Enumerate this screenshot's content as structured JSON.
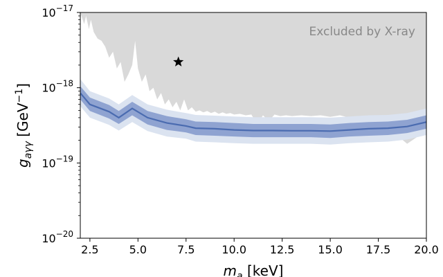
{
  "chart_data": {
    "type": "area",
    "title": "",
    "xlabel": "m_a [keV]",
    "ylabel": "g_aγγ [GeV⁻¹]",
    "xlim": [
      2.0,
      20.0
    ],
    "ylim": [
      1e-20,
      1e-17
    ],
    "xscale": "linear",
    "yscale": "log",
    "grid": false,
    "xticks": [
      {
        "value": 2.5,
        "label": "2.5"
      },
      {
        "value": 5.0,
        "label": "5.0"
      },
      {
        "value": 7.5,
        "label": "7.5"
      },
      {
        "value": 10.0,
        "label": "10.0"
      },
      {
        "value": 12.5,
        "label": "12.5"
      },
      {
        "value": 15.0,
        "label": "15.0"
      },
      {
        "value": 17.5,
        "label": "17.5"
      },
      {
        "value": 20.0,
        "label": "20.0"
      }
    ],
    "yticks": [
      {
        "value": 1e-20,
        "base": "10",
        "exp": "−20"
      },
      {
        "value": 1e-19,
        "base": "10",
        "exp": "−19"
      },
      {
        "value": 1e-18,
        "base": "10",
        "exp": "−18"
      },
      {
        "value": 1e-17,
        "base": "10",
        "exp": "−17"
      }
    ],
    "annotation": {
      "text": "Excluded by X-ray",
      "color": "#888888"
    },
    "colors": {
      "excluded": "#d9d9d9",
      "band_2sigma": "#dbe3f0",
      "band_1sigma": "#8fa3d1",
      "median": "#4a6bb0",
      "marker": "#000000"
    },
    "excluded_boundary": {
      "x": [
        2.0,
        2.2,
        2.3,
        2.45,
        2.55,
        2.7,
        2.9,
        3.1,
        3.3,
        3.5,
        3.7,
        3.9,
        4.1,
        4.3,
        4.5,
        4.7,
        4.85,
        5.0,
        5.2,
        5.4,
        5.6,
        5.8,
        6.0,
        6.2,
        6.4,
        6.6,
        6.8,
        7.0,
        7.2,
        7.4,
        7.6,
        7.8,
        8.0,
        8.2,
        8.4,
        8.6,
        8.8,
        9.0,
        9.2,
        9.4,
        9.6,
        9.8,
        10.0,
        10.3,
        10.6,
        10.9,
        11.2,
        11.5,
        11.8,
        12.1,
        12.4,
        12.7,
        13.0,
        13.5,
        14.0,
        14.5,
        15.0,
        15.5,
        16.0,
        16.5,
        17.0,
        17.5,
        18.0,
        18.5,
        19.0,
        19.5,
        20.0
      ],
      "y": [
        1e-17,
        7e-18,
        9e-18,
        6e-18,
        8e-18,
        5.5e-18,
        4.5e-18,
        4.2e-18,
        3.5e-18,
        2.5e-18,
        3e-18,
        1.8e-18,
        2.2e-18,
        1.2e-18,
        1.5e-18,
        2e-18,
        4.2e-18,
        1.8e-18,
        1.2e-18,
        1.5e-18,
        9e-19,
        1e-18,
        7e-19,
        8.5e-19,
        6e-19,
        7e-19,
        5.5e-19,
        6.5e-19,
        5e-19,
        7e-19,
        5e-19,
        5.5e-19,
        4.8e-19,
        5e-19,
        4.7e-19,
        4.9e-19,
        4.6e-19,
        4.8e-19,
        4.5e-19,
        4.7e-19,
        4.5e-19,
        4.6e-19,
        4.4e-19,
        4.5e-19,
        4.3e-19,
        4.4e-19,
        3.2e-19,
        4.3e-19,
        3.6e-19,
        4.4e-19,
        4.2e-19,
        4.3e-19,
        4.2e-19,
        4.3e-19,
        4.2e-19,
        4.3e-19,
        4.1e-19,
        4.3e-19,
        4e-19,
        4.2e-19,
        3.6e-19,
        3.2e-19,
        2.9e-19,
        2.3e-19,
        1.8e-19,
        2.2e-19,
        2.5e-19
      ]
    },
    "x": [
      2.0,
      2.5,
      3.5,
      4.0,
      4.7,
      5.5,
      6.5,
      7.5,
      8.0,
      9.0,
      10.0,
      11.0,
      12.0,
      13.0,
      14.0,
      15.0,
      16.0,
      17.0,
      18.0,
      19.0,
      20.0
    ],
    "series": [
      {
        "role": "median",
        "values": [
          8.5e-19,
          6e-19,
          4.8e-19,
          4e-19,
          5.3e-19,
          4e-19,
          3.4e-19,
          3.1e-19,
          2.9e-19,
          2.85e-19,
          2.75e-19,
          2.7e-19,
          2.7e-19,
          2.68e-19,
          2.68e-19,
          2.65e-19,
          2.75e-19,
          2.85e-19,
          2.9e-19,
          3.05e-19,
          3.5e-19
        ]
      },
      {
        "role": "1sigma_upper",
        "values": [
          1.05e-18,
          7.4e-19,
          5.9e-19,
          4.9e-19,
          6.5e-19,
          4.9e-19,
          4.2e-19,
          3.8e-19,
          3.55e-19,
          3.5e-19,
          3.4e-19,
          3.3e-19,
          3.3e-19,
          3.3e-19,
          3.3e-19,
          3.25e-19,
          3.4e-19,
          3.5e-19,
          3.55e-19,
          3.75e-19,
          4.3e-19
        ]
      },
      {
        "role": "1sigma_lower",
        "values": [
          7e-19,
          4.9e-19,
          3.9e-19,
          3.3e-19,
          4.3e-19,
          3.25e-19,
          2.75e-19,
          2.55e-19,
          2.35e-19,
          2.3e-19,
          2.25e-19,
          2.2e-19,
          2.2e-19,
          2.2e-19,
          2.2e-19,
          2.15e-19,
          2.25e-19,
          2.3e-19,
          2.35e-19,
          2.5e-19,
          2.85e-19
        ]
      },
      {
        "role": "2sigma_upper",
        "values": [
          1.3e-18,
          9e-19,
          7.2e-19,
          6e-19,
          8e-19,
          6e-19,
          5.1e-19,
          4.6e-19,
          4.35e-19,
          4.25e-19,
          4.15e-19,
          4.05e-19,
          4.05e-19,
          4.05e-19,
          4.05e-19,
          4e-19,
          4.15e-19,
          4.3e-19,
          4.35e-19,
          4.6e-19,
          5.3e-19
        ]
      },
      {
        "role": "2sigma_lower",
        "values": [
          5.7e-19,
          4e-19,
          3.2e-19,
          2.7e-19,
          3.5e-19,
          2.65e-19,
          2.25e-19,
          2.1e-19,
          1.92e-19,
          1.88e-19,
          1.83e-19,
          1.8e-19,
          1.8e-19,
          1.8e-19,
          1.8e-19,
          1.76e-19,
          1.83e-19,
          1.88e-19,
          1.92e-19,
          2.05e-19,
          2.35e-19
        ]
      }
    ],
    "marker": {
      "x": 7.1,
      "y": 2.2e-18,
      "symbol": "star"
    }
  }
}
